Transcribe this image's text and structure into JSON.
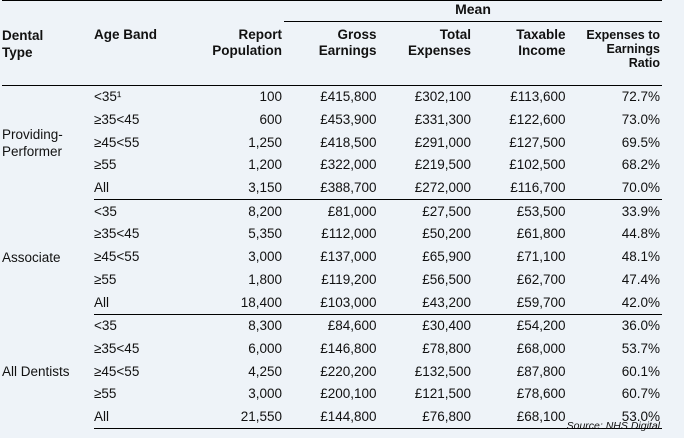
{
  "header": {
    "mean": "Mean",
    "dental_type": [
      "Dental",
      "Type"
    ],
    "age_band": "Age Band",
    "report_population": [
      "Report",
      "Population"
    ],
    "gross_earnings": [
      "Gross",
      "Earnings"
    ],
    "total_expenses": [
      "Total",
      "Expenses"
    ],
    "taxable_income": [
      "Taxable",
      "Income"
    ],
    "expenses_ratio": [
      "Expenses to",
      "Earnings",
      "Ratio"
    ]
  },
  "groups": [
    {
      "type": [
        "Providing-",
        "Performer"
      ],
      "rows": [
        {
          "age": "<35¹",
          "pop": "100",
          "gross": "£415,800",
          "exp": "£302,100",
          "tax": "£113,600",
          "ratio": "72.7%"
        },
        {
          "age": "≥35<45",
          "pop": "600",
          "gross": "£453,900",
          "exp": "£331,300",
          "tax": "£122,600",
          "ratio": "73.0%"
        },
        {
          "age": "≥45<55",
          "pop": "1,250",
          "gross": "£418,500",
          "exp": "£291,000",
          "tax": "£127,500",
          "ratio": "69.5%"
        },
        {
          "age": "≥55",
          "pop": "1,200",
          "gross": "£322,000",
          "exp": "£219,500",
          "tax": "£102,500",
          "ratio": "68.2%"
        },
        {
          "age": "All",
          "pop": "3,150",
          "gross": "£388,700",
          "exp": "£272,000",
          "tax": "£116,700",
          "ratio": "70.0%"
        }
      ]
    },
    {
      "type": [
        "Associate"
      ],
      "rows": [
        {
          "age": "<35",
          "pop": "8,200",
          "gross": "£81,000",
          "exp": "£27,500",
          "tax": "£53,500",
          "ratio": "33.9%"
        },
        {
          "age": "≥35<45",
          "pop": "5,350",
          "gross": "£112,000",
          "exp": "£50,200",
          "tax": "£61,800",
          "ratio": "44.8%"
        },
        {
          "age": "≥45<55",
          "pop": "3,000",
          "gross": "£137,000",
          "exp": "£65,900",
          "tax": "£71,100",
          "ratio": "48.1%"
        },
        {
          "age": "≥55",
          "pop": "1,800",
          "gross": "£119,200",
          "exp": "£56,500",
          "tax": "£62,700",
          "ratio": "47.4%"
        },
        {
          "age": "All",
          "pop": "18,400",
          "gross": "£103,000",
          "exp": "£43,200",
          "tax": "£59,700",
          "ratio": "42.0%"
        }
      ]
    },
    {
      "type": [
        "All Dentists"
      ],
      "rows": [
        {
          "age": "<35",
          "pop": "8,300",
          "gross": "£84,600",
          "exp": "£30,400",
          "tax": "£54,200",
          "ratio": "36.0%"
        },
        {
          "age": "≥35<45",
          "pop": "6,000",
          "gross": "£146,800",
          "exp": "£78,800",
          "tax": "£68,000",
          "ratio": "53.7%"
        },
        {
          "age": "≥45<55",
          "pop": "4,250",
          "gross": "£220,200",
          "exp": "£132,500",
          "tax": "£87,800",
          "ratio": "60.1%"
        },
        {
          "age": "≥55",
          "pop": "3,000",
          "gross": "£200,100",
          "exp": "£121,500",
          "tax": "£78,600",
          "ratio": "60.7%"
        },
        {
          "age": "All",
          "pop": "21,550",
          "gross": "£144,800",
          "exp": "£76,800",
          "tax": "£68,100",
          "ratio": "53.0%"
        }
      ]
    }
  ],
  "source": "Source: NHS Digital"
}
